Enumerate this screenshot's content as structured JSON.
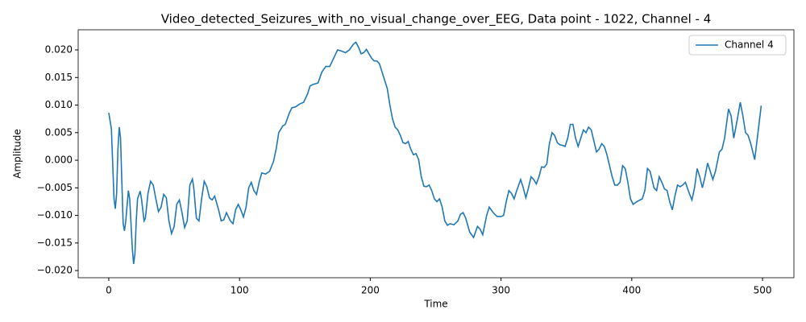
{
  "chart_data": {
    "type": "line",
    "title": "Video_detected_Seizures_with_no_visual_change_over_EEG, Data point - 1022, Channel - 4",
    "x_label": "Time",
    "y_label": "Amplitude",
    "legend": "upper right",
    "grid": false,
    "xlim": [
      -23.4,
      524
    ],
    "ylim": [
      -0.0213,
      0.02365
    ],
    "xticks": [
      0,
      100,
      200,
      300,
      400,
      500
    ],
    "yticks": [
      {
        "value": -0.02,
        "label": "−0.020"
      },
      {
        "value": -0.015,
        "label": "−0.015"
      },
      {
        "value": -0.01,
        "label": "−0.010"
      },
      {
        "value": -0.005,
        "label": "−0.005"
      },
      {
        "value": 0,
        "label": "0.000"
      },
      {
        "value": 0.005,
        "label": "0.005"
      },
      {
        "value": 0.01,
        "label": "0.010"
      },
      {
        "value": 0.015,
        "label": "0.015"
      },
      {
        "value": 0.02,
        "label": "0.020"
      }
    ],
    "x": [
      0,
      2,
      4,
      5,
      6,
      7,
      8,
      9,
      10,
      11,
      12,
      13,
      15,
      16,
      18,
      19,
      20,
      21,
      22,
      24,
      25,
      27,
      28,
      30,
      32,
      34,
      36,
      38,
      40,
      42,
      44,
      46,
      48,
      50,
      52,
      54,
      56,
      58,
      60,
      62,
      64,
      65,
      67,
      69,
      71,
      73,
      75,
      77,
      79,
      81,
      84,
      86,
      88,
      90,
      93,
      95,
      97,
      99,
      101,
      103,
      105,
      107,
      109,
      111,
      113,
      115,
      117,
      120,
      123,
      126,
      128,
      130,
      133,
      135,
      138,
      140,
      143,
      146,
      149,
      152,
      154,
      157,
      160,
      163,
      166,
      169,
      172,
      175,
      178,
      181,
      184,
      187,
      189,
      191,
      193,
      195,
      197,
      199,
      201,
      203,
      205,
      207,
      209,
      211,
      213,
      215,
      217,
      219,
      221,
      223,
      225,
      227,
      229,
      231,
      233,
      235,
      237,
      239,
      241,
      243,
      245,
      247,
      249,
      251,
      253,
      255,
      257,
      259,
      261,
      264,
      267,
      269,
      271,
      273,
      276,
      279,
      282,
      284,
      286,
      289,
      291,
      294,
      297,
      300,
      302,
      304,
      306,
      308,
      310,
      312,
      315,
      317,
      319,
      321,
      323,
      325,
      327,
      329,
      331,
      333,
      335,
      337,
      339,
      341,
      343,
      345,
      347,
      349,
      351,
      353,
      355,
      357,
      359,
      361,
      363,
      365,
      367,
      369,
      371,
      373,
      375,
      377,
      379,
      381,
      383,
      385,
      387,
      389,
      391,
      393,
      395,
      397,
      399,
      401,
      404,
      408,
      410,
      412,
      414,
      417,
      419,
      421,
      423,
      425,
      427,
      429,
      431,
      433,
      435,
      437,
      439,
      441,
      444,
      446,
      448,
      450,
      452,
      454,
      456,
      458,
      460,
      462,
      464,
      467,
      469,
      471,
      474,
      476,
      478,
      480,
      483,
      485,
      487,
      489,
      491,
      494,
      496,
      499
    ],
    "series": [
      {
        "name": "Channel 4",
        "color": "#1f77b4",
        "values": [
          0.0086,
          0.0057,
          -0.007,
          -0.0088,
          -0.006,
          0.002,
          0.006,
          0.004,
          -0.004,
          -0.0115,
          -0.0128,
          -0.011,
          -0.0055,
          -0.007,
          -0.016,
          -0.0188,
          -0.017,
          -0.011,
          -0.007,
          -0.0056,
          -0.007,
          -0.011,
          -0.0105,
          -0.006,
          -0.0038,
          -0.0045,
          -0.007,
          -0.0093,
          -0.0085,
          -0.0062,
          -0.0068,
          -0.011,
          -0.0133,
          -0.012,
          -0.008,
          -0.0072,
          -0.0095,
          -0.0122,
          -0.011,
          -0.0045,
          -0.0034,
          -0.005,
          -0.0105,
          -0.011,
          -0.007,
          -0.0038,
          -0.0048,
          -0.0068,
          -0.0072,
          -0.0065,
          -0.009,
          -0.011,
          -0.0108,
          -0.0095,
          -0.011,
          -0.0115,
          -0.009,
          -0.008,
          -0.009,
          -0.0103,
          -0.0085,
          -0.005,
          -0.004,
          -0.0055,
          -0.0062,
          -0.004,
          -0.0023,
          -0.0025,
          -0.002,
          -0.0002,
          0.002,
          0.005,
          0.0062,
          0.0065,
          0.0085,
          0.0095,
          0.0097,
          0.0102,
          0.0105,
          0.012,
          0.0135,
          0.0138,
          0.014,
          0.016,
          0.017,
          0.017,
          0.0185,
          0.02,
          0.0198,
          0.0195,
          0.02,
          0.021,
          0.0214,
          0.0205,
          0.0193,
          0.0195,
          0.0201,
          0.0193,
          0.0185,
          0.018,
          0.018,
          0.0175,
          0.016,
          0.0145,
          0.013,
          0.01,
          0.0075,
          0.006,
          0.0055,
          0.0045,
          0.0032,
          0.003,
          0.0034,
          0.002,
          0.001,
          0.0012,
          0.0001,
          -0.003,
          -0.0047,
          -0.0048,
          -0.0045,
          -0.0055,
          -0.007,
          -0.0075,
          -0.007,
          -0.0085,
          -0.011,
          -0.0118,
          -0.0115,
          -0.0117,
          -0.011,
          -0.0098,
          -0.0095,
          -0.0105,
          -0.013,
          -0.014,
          -0.012,
          -0.0125,
          -0.0135,
          -0.01,
          -0.0085,
          -0.0095,
          -0.0102,
          -0.0102,
          -0.01,
          -0.0075,
          -0.0055,
          -0.006,
          -0.007,
          -0.0055,
          -0.0035,
          -0.005,
          -0.0068,
          -0.005,
          -0.003,
          -0.0035,
          -0.0043,
          -0.003,
          -0.0012,
          -0.0013,
          -0.0007,
          0.003,
          0.005,
          0.0045,
          0.0032,
          0.0028,
          0.0027,
          0.0025,
          0.004,
          0.0065,
          0.0065,
          0.004,
          0.0025,
          0.004,
          0.0055,
          0.005,
          0.006,
          0.0055,
          0.0035,
          0.0015,
          0.002,
          0.003,
          0.0025,
          0.001,
          -0.001,
          -0.003,
          -0.0045,
          -0.0045,
          -0.004,
          -0.001,
          -0.0015,
          -0.004,
          -0.007,
          -0.008,
          -0.0075,
          -0.007,
          -0.0055,
          -0.0015,
          -0.002,
          -0.005,
          -0.0055,
          -0.003,
          -0.004,
          -0.0052,
          -0.0055,
          -0.0075,
          -0.009,
          -0.0065,
          -0.0045,
          -0.0048,
          -0.0045,
          -0.004,
          -0.006,
          -0.0072,
          -0.005,
          -0.0015,
          -0.003,
          -0.005,
          -0.003,
          -0.0005,
          -0.002,
          -0.0035,
          -0.002,
          0.0015,
          0.002,
          0.004,
          0.0093,
          0.008,
          0.004,
          0.0065,
          0.0105,
          0.008,
          0.005,
          0.0045,
          0.003,
          0.0001,
          0.004,
          0.0099
        ]
      }
    ]
  }
}
